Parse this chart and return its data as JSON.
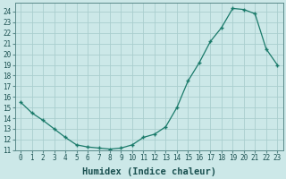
{
  "x": [
    0,
    1,
    2,
    3,
    4,
    5,
    6,
    7,
    8,
    9,
    10,
    11,
    12,
    13,
    14,
    15,
    16,
    17,
    18,
    19,
    20,
    21,
    22,
    23
  ],
  "y": [
    15.5,
    14.5,
    13.8,
    13.0,
    12.2,
    11.5,
    11.3,
    11.2,
    11.1,
    11.2,
    11.5,
    12.2,
    12.5,
    13.2,
    15.0,
    17.5,
    19.2,
    21.2,
    22.5,
    24.3,
    24.2,
    23.8,
    20.5,
    19.0
  ],
  "line_color": "#1a7a6a",
  "marker": "+",
  "bg_color": "#cce8e8",
  "grid_color": "#aacece",
  "xlabel": "Humidex (Indice chaleur)",
  "xlim": [
    -0.5,
    23.5
  ],
  "ylim": [
    11,
    24.8
  ],
  "yticks": [
    11,
    12,
    13,
    14,
    15,
    16,
    17,
    18,
    19,
    20,
    21,
    22,
    23,
    24
  ],
  "xticks": [
    0,
    1,
    2,
    3,
    4,
    5,
    6,
    7,
    8,
    9,
    10,
    11,
    12,
    13,
    14,
    15,
    16,
    17,
    18,
    19,
    20,
    21,
    22,
    23
  ],
  "tick_fontsize": 5.5,
  "xlabel_fontsize": 7.5,
  "label_color": "#1a5050",
  "spine_color": "#5a8a8a"
}
